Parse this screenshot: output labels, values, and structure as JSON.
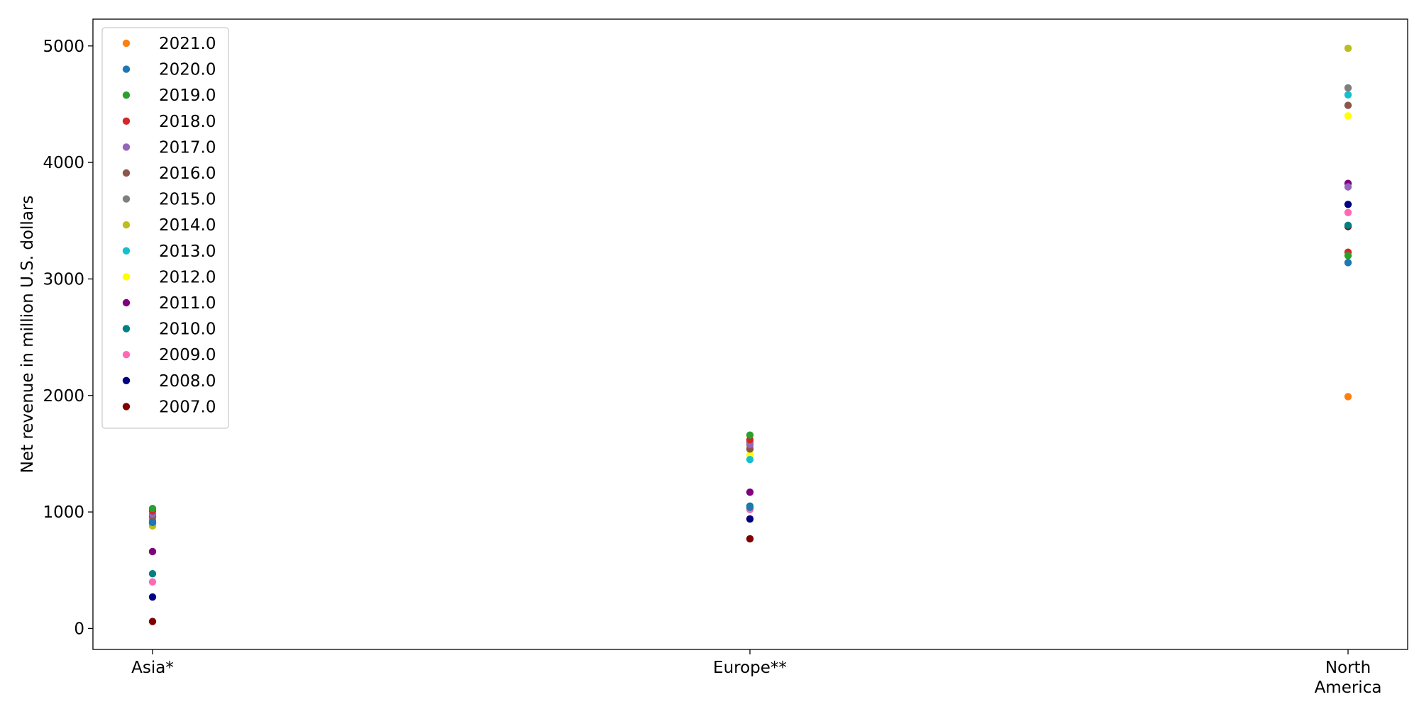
{
  "chart_data": {
    "type": "scatter",
    "title": "",
    "xlabel": "",
    "ylabel": "Net revenue in million U.S. dollars",
    "categories": [
      "Asia*",
      "Europe**",
      "North America"
    ],
    "category_tick_lines": [
      [
        "Asia*"
      ],
      [
        "Europe**"
      ],
      [
        "North",
        "America"
      ]
    ],
    "ylim": [
      -180,
      5230
    ],
    "yticks": [
      0,
      1000,
      2000,
      3000,
      4000,
      5000
    ],
    "grid": false,
    "legend_position": "top-left",
    "series": [
      {
        "name": "2021.0",
        "color": "#ff7f0e",
        "values": [
          null,
          null,
          1990
        ]
      },
      {
        "name": "2020.0",
        "color": "#1f77b4",
        "values": [
          910,
          1040,
          3140
        ]
      },
      {
        "name": "2019.0",
        "color": "#2ca02c",
        "values": [
          1030,
          1660,
          3200
        ]
      },
      {
        "name": "2018.0",
        "color": "#d62728",
        "values": [
          1010,
          1620,
          3230
        ]
      },
      {
        "name": "2017.0",
        "color": "#9467bd",
        "values": [
          980,
          1580,
          3790
        ]
      },
      {
        "name": "2016.0",
        "color": "#8c564b",
        "values": [
          960,
          1540,
          4490
        ]
      },
      {
        "name": "2015.0",
        "color": "#7f7f7f",
        "values": [
          930,
          1600,
          4640
        ]
      },
      {
        "name": "2014.0",
        "color": "#bcbd22",
        "values": [
          880,
          1570,
          4980
        ]
      },
      {
        "name": "2013.0",
        "color": "#17becf",
        "values": [
          900,
          1450,
          4580
        ]
      },
      {
        "name": "2012.0",
        "color": "#ffff00",
        "values": [
          960,
          1490,
          4400
        ]
      },
      {
        "name": "2011.0",
        "color": "#800080",
        "values": [
          660,
          1170,
          3820
        ]
      },
      {
        "name": "2010.0",
        "color": "#008080",
        "values": [
          470,
          1050,
          3460
        ]
      },
      {
        "name": "2009.0",
        "color": "#ff69b4",
        "values": [
          400,
          1020,
          3570
        ]
      },
      {
        "name": "2008.0",
        "color": "#000080",
        "values": [
          270,
          940,
          3640
        ]
      },
      {
        "name": "2007.0",
        "color": "#800000",
        "values": [
          60,
          770,
          3450
        ]
      }
    ]
  }
}
